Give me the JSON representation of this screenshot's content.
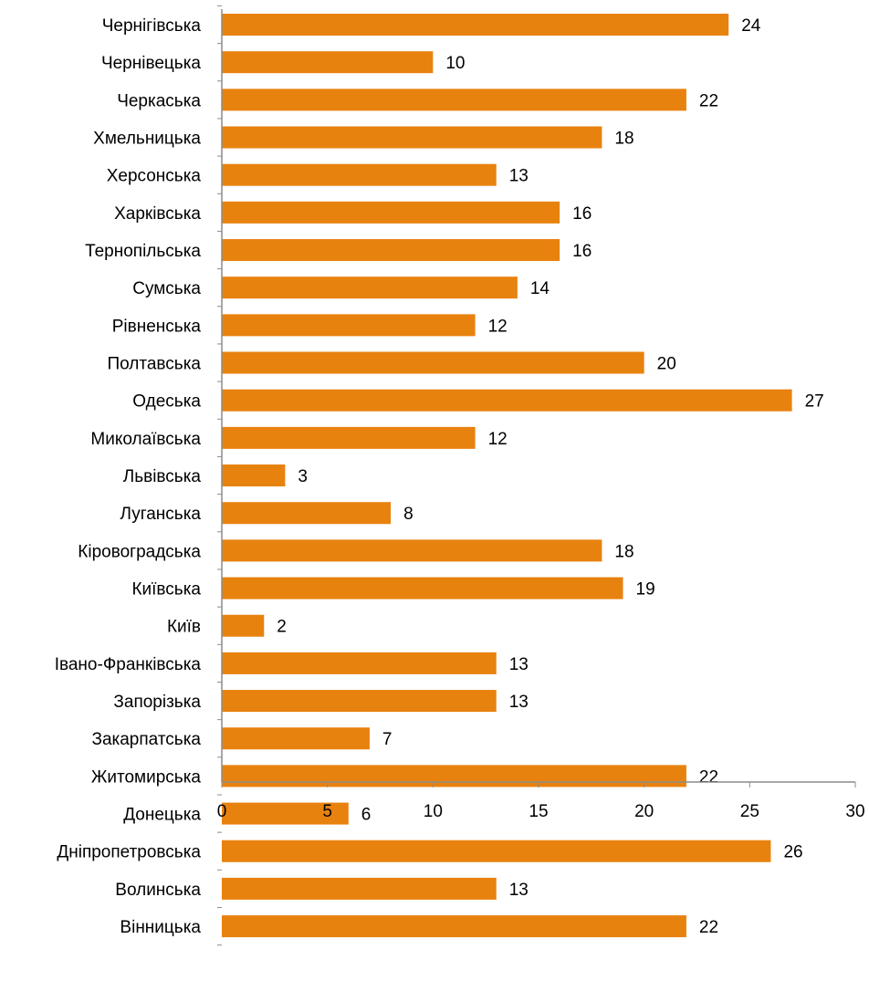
{
  "chart_data": {
    "type": "bar",
    "orientation": "horizontal",
    "title": "",
    "xlabel": "",
    "ylabel": "",
    "xlim": [
      0,
      30
    ],
    "xticks": [
      0,
      5,
      10,
      15,
      20,
      25,
      30
    ],
    "grid": false,
    "legend": "none",
    "bar_color": "#E8820F",
    "categories": [
      "Чернігівська",
      "Чернівецька",
      "Черкаська",
      "Хмельницька",
      "Херсонська",
      "Харківська",
      "Тернопільська",
      "Сумська",
      "Рівненська",
      "Полтавська",
      "Одеська",
      "Миколаївська",
      "Львівська",
      "Луганська",
      "Кіровоградська",
      "Київська",
      "Київ",
      "Івано-Франківська",
      "Запорізька",
      "Закарпатська",
      "Житомирська",
      "Донецька",
      "Дніпропетровська",
      "Волинська",
      "Вінницька"
    ],
    "values": [
      24,
      10,
      22,
      18,
      13,
      16,
      16,
      14,
      12,
      20,
      27,
      12,
      3,
      8,
      18,
      19,
      2,
      13,
      13,
      7,
      22,
      6,
      26,
      13,
      22
    ]
  }
}
